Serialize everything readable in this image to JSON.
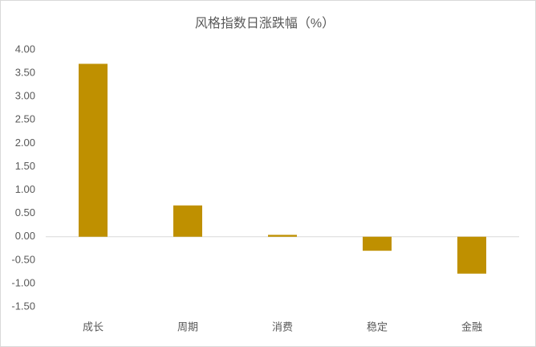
{
  "chart_data": {
    "type": "bar",
    "title": "风格指数日涨跌幅（%）",
    "categories": [
      "成长",
      "周期",
      "消费",
      "稳定",
      "金融"
    ],
    "values": [
      3.7,
      0.67,
      0.04,
      -0.3,
      -0.79
    ],
    "color": "#bf9000",
    "ylim": [
      -1.5,
      4.0
    ],
    "yticks": [
      {
        "value": -1.5,
        "label": "-1.50"
      },
      {
        "value": -1.0,
        "label": "-1.00"
      },
      {
        "value": -0.5,
        "label": "-0.50"
      },
      {
        "value": 0,
        "label": "0.00"
      },
      {
        "value": 0.5,
        "label": "0.50"
      },
      {
        "value": 1.0,
        "label": "1.00"
      },
      {
        "value": 1.5,
        "label": "1.50"
      },
      {
        "value": 2.0,
        "label": "2.00"
      },
      {
        "value": 2.5,
        "label": "2.50"
      },
      {
        "value": 3.0,
        "label": "3.00"
      },
      {
        "value": 3.5,
        "label": "3.50"
      },
      {
        "value": 4.0,
        "label": "4.00"
      }
    ],
    "grid": false
  }
}
